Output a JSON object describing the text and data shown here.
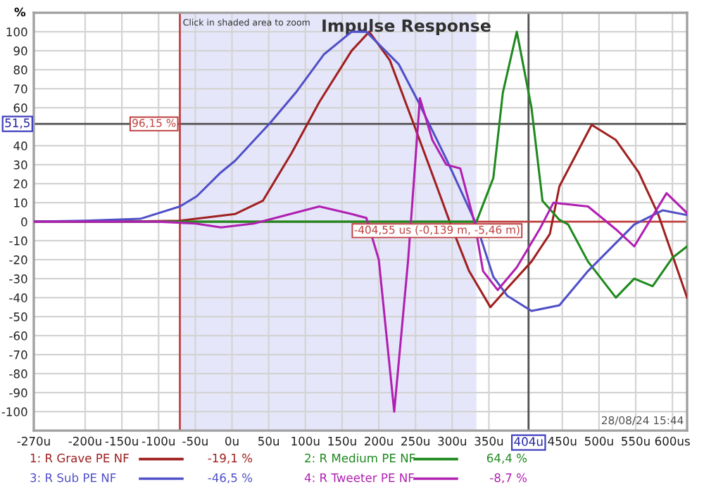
{
  "chart_data": {
    "type": "line",
    "title": "Impulse Response",
    "ylabel": "%",
    "xlim": [
      -270,
      620
    ],
    "ylim": [
      -110,
      110
    ],
    "xticks": [
      {
        "value": -270,
        "label": "-270u"
      },
      {
        "value": -200,
        "label": "-200u"
      },
      {
        "value": -150,
        "label": "-150u"
      },
      {
        "value": -100,
        "label": "-100u"
      },
      {
        "value": -50,
        "label": "-50u"
      },
      {
        "value": 0,
        "label": "0u"
      },
      {
        "value": 50,
        "label": "50u"
      },
      {
        "value": 100,
        "label": "100u"
      },
      {
        "value": 150,
        "label": "150u"
      },
      {
        "value": 200,
        "label": "200u"
      },
      {
        "value": 250,
        "label": "250u"
      },
      {
        "value": 300,
        "label": "300u"
      },
      {
        "value": 350,
        "label": "350u"
      },
      {
        "value": 450,
        "label": "450u"
      },
      {
        "value": 500,
        "label": "500u"
      },
      {
        "value": 550,
        "label": "550u"
      },
      {
        "value": 600,
        "label": "600us"
      }
    ],
    "yticks": [
      -100,
      -90,
      -80,
      -70,
      -60,
      -50,
      -40,
      -30,
      -20,
      -10,
      0,
      10,
      20,
      30,
      40,
      60,
      70,
      80,
      90,
      100
    ],
    "grid": true,
    "legend": "bottom",
    "marker": "none",
    "line_style": "solid",
    "series": [
      {
        "name": "1: R Grave PE NF",
        "color": "#a02020",
        "x": [
          -270,
          -150,
          -71,
          4,
          42,
          81,
          119,
          163,
          187,
          215,
          246,
          279,
          298,
          323,
          352,
          375,
          408,
          433,
          446,
          490,
          523,
          554,
          581,
          620
        ],
        "values": [
          0,
          0,
          0.5,
          4,
          11,
          36,
          63,
          90,
          100,
          85,
          53,
          18.6,
          -1.5,
          -26,
          -45,
          -35,
          -21,
          -6.5,
          18.6,
          51,
          43,
          26,
          3.5,
          -40
        ]
      },
      {
        "name": "2: R Medium PE NF",
        "color": "#1f8a1f",
        "x": [
          -270,
          0,
          200,
          333,
          356,
          369,
          388,
          408,
          423,
          446,
          458,
          485,
          523,
          548,
          573,
          600,
          620
        ],
        "values": [
          0,
          0,
          0,
          0,
          23,
          68,
          100,
          60,
          11,
          1,
          -1.5,
          -21,
          -40,
          -30,
          -34,
          -19,
          -13
        ]
      },
      {
        "name": "3: R Sub PE NF",
        "color": "#5050c8",
        "x": [
          -270,
          -200,
          -125,
          -71,
          -48,
          -15,
          4,
          52,
          87,
          125,
          163,
          183,
          227,
          254,
          292,
          333,
          356,
          375,
          408,
          446,
          485,
          548,
          587,
          620
        ],
        "values": [
          0,
          0.5,
          1.5,
          8,
          13.4,
          26,
          32,
          52,
          68,
          88,
          100,
          100,
          83,
          63,
          33,
          -1.5,
          -29,
          -39,
          -47,
          -44,
          -26,
          -1.5,
          6,
          3.5
        ]
      },
      {
        "name": "4: R Tweeter PE NF",
        "color": "#b020b0",
        "x": [
          -270,
          -100,
          -50,
          -15,
          30,
          119,
          163,
          183,
          200,
          221,
          240,
          256,
          273,
          292,
          311,
          331,
          342,
          362,
          388,
          419,
          438,
          485,
          523,
          548,
          592,
          620
        ],
        "values": [
          0,
          0,
          -1,
          -3,
          -1,
          8,
          4,
          2,
          -20,
          -100,
          -20,
          65,
          43,
          30,
          28,
          -1.5,
          -26,
          -36,
          -24,
          -4,
          10,
          8,
          -4,
          -13,
          15,
          4.5
        ]
      }
    ],
    "ref_lines": [
      {
        "axis": "y",
        "value": 51.5,
        "label": "51,5",
        "color": "#505050"
      },
      {
        "axis": "x",
        "value": 404,
        "label": "404u",
        "color": "#505050"
      },
      {
        "axis": "x",
        "value": -71,
        "color": "#c04040"
      },
      {
        "axis": "y",
        "value": 0,
        "label": "-404,55 us (-0,139 m, -5,46 m)",
        "color": "#c04040"
      }
    ],
    "bands": [
      {
        "axis": "x",
        "from": -71,
        "to": 333,
        "label": "Click in shaded area to zoom",
        "color": "#e6e6fa"
      }
    ],
    "annotations": [
      "-19,1 %",
      "64,4 %",
      "-46,5 %",
      "-8,7 %",
      "28/08/24 15:44",
      "96,15 %"
    ]
  }
}
